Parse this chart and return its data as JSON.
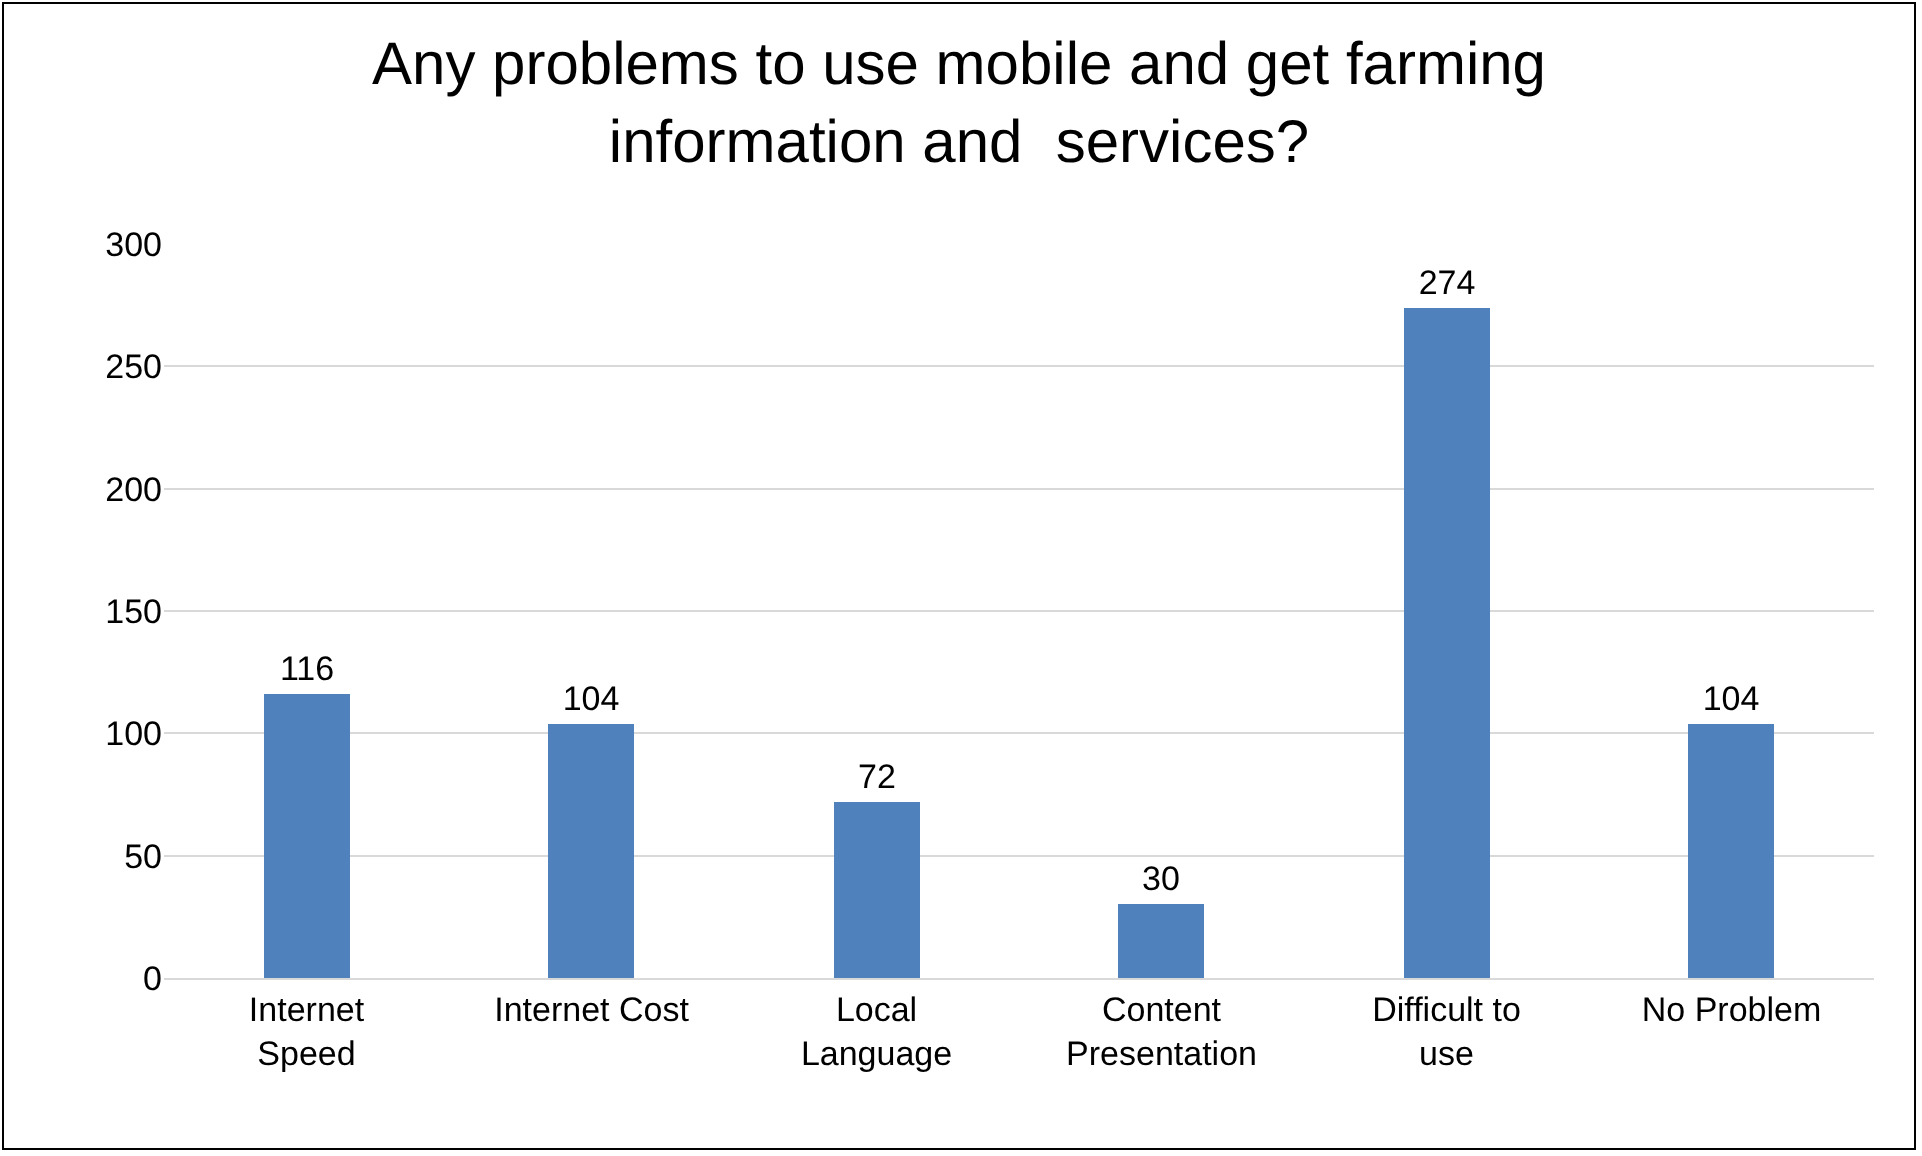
{
  "chart_data": {
    "type": "bar",
    "title": "Any problems to use mobile and get farming information and  services?",
    "categories": [
      "Internet Speed",
      "Internet Cost",
      "Local Language",
      "Content Presentation",
      "Difficult to use",
      "No Problem"
    ],
    "values": [
      116,
      104,
      72,
      30,
      274,
      104
    ],
    "color": "#4f81bd",
    "ylim": [
      0,
      300
    ],
    "yticks": [
      0,
      50,
      100,
      150,
      200,
      250,
      300
    ],
    "grid": "y",
    "data_labels": true
  }
}
